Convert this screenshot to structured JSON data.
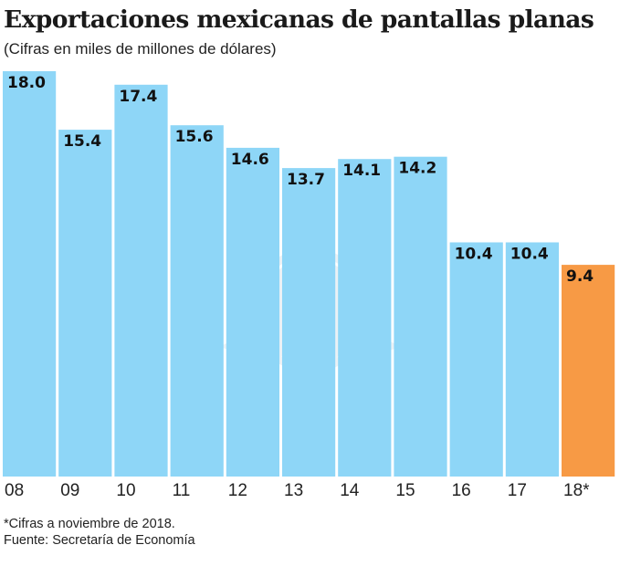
{
  "chart_data": {
    "type": "bar",
    "title": "Exportaciones mexicanas de pantallas planas",
    "subtitle": "(Cifras en miles de millones de dólares)",
    "xlabel": "",
    "ylabel": "",
    "categories": [
      "08",
      "09",
      "10",
      "11",
      "12",
      "13",
      "14",
      "15",
      "16",
      "17",
      "18*"
    ],
    "values": [
      18.0,
      15.4,
      17.4,
      15.6,
      14.6,
      13.7,
      14.1,
      14.2,
      10.4,
      10.4,
      9.4
    ],
    "value_labels": [
      "18.0",
      "15.4",
      "17.4",
      "15.6",
      "14.6",
      "13.7",
      "14.1",
      "14.2",
      "10.4",
      "10.4",
      "9.4"
    ],
    "ylim": [
      0,
      18.0
    ],
    "grid": false,
    "colors": {
      "default": "#8ed6f7",
      "highlight": "#f79a45",
      "highlight_index": 10
    },
    "footnotes": [
      "*Cifras a noviembre de 2018.",
      "Fuente: Secretaría de Economía"
    ]
  }
}
